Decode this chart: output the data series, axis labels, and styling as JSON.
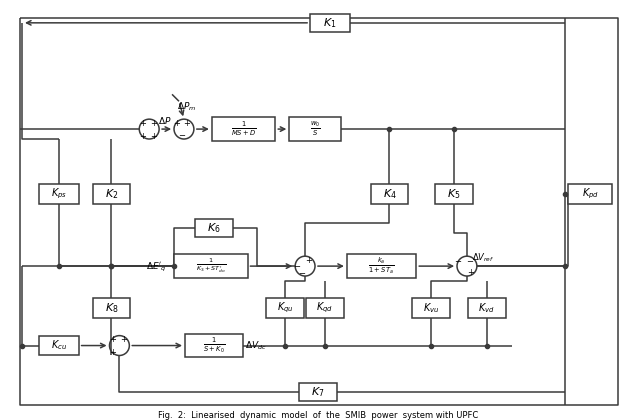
{
  "title": "Fig.  2:  Linearised  dynamic  model  of  the  SMIB  power  system with UPFC",
  "lc": "#3a3a3a",
  "lw": 1.1,
  "cr": 10,
  "lw_outer": 1.3
}
